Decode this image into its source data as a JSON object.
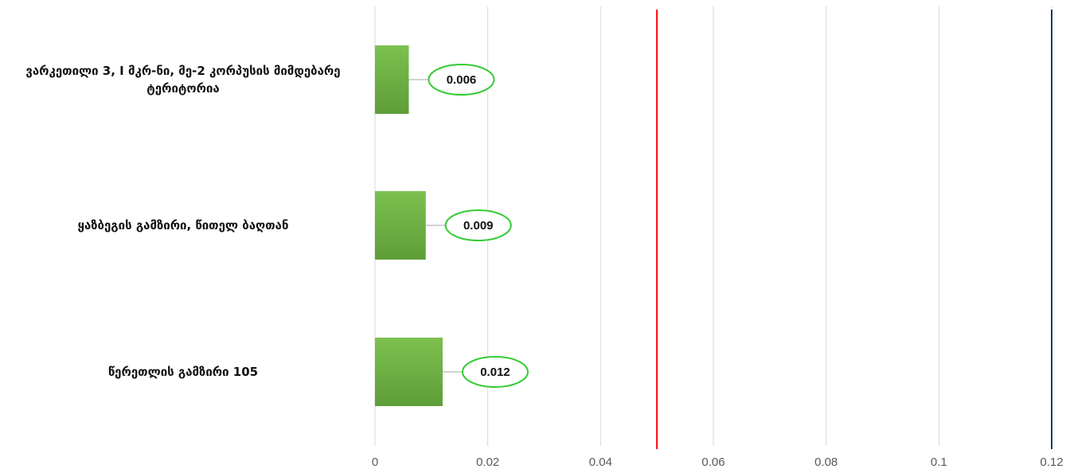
{
  "chart_data": {
    "type": "bar",
    "orientation": "horizontal",
    "categories": [
      [
        "ვარკეთილი 3, I მკრ-ნი, მე-2 კორპუსის მიმდებარე",
        "ტერიტორია"
      ],
      [
        "ყაზბეგის გამზირი, წითელ ბაღთან"
      ],
      [
        "წერეთლის გამზირი 105"
      ]
    ],
    "values": [
      0.006,
      0.009,
      0.012
    ],
    "value_labels": [
      "0.006",
      "0.009",
      "0.012"
    ],
    "xlim": [
      0,
      0.12
    ],
    "ticks": [
      0,
      0.02,
      0.04,
      0.06,
      0.08,
      0.1,
      0.12
    ],
    "tick_labels": [
      "0",
      "0.02",
      "0.04",
      "0.06",
      "0.08",
      "0.1",
      "0.12"
    ],
    "reference_lines": [
      {
        "x": 0.05,
        "color": "#ff0000"
      },
      {
        "x": 0.12,
        "color": "#1f3864"
      }
    ],
    "grid": true,
    "colors": {
      "bar": "#70ad47",
      "bar_dark": "#5a9a35",
      "label_outline": "#33cc33",
      "grid": "#d9d9d9",
      "axis": "#d9d9d9"
    }
  }
}
